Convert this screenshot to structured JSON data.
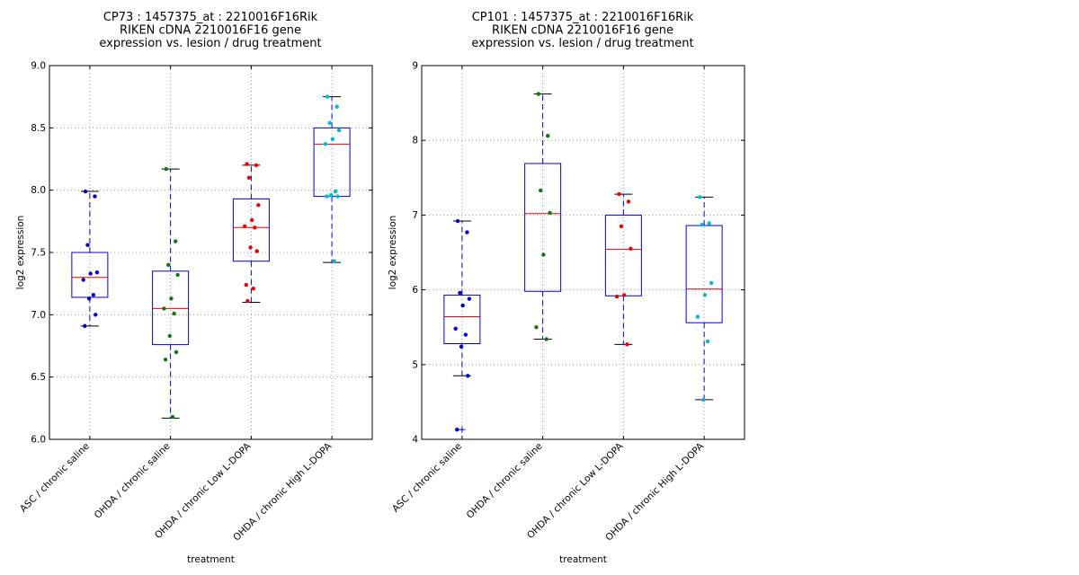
{
  "chart_data": [
    {
      "type": "box",
      "title_lines": [
        "CP73 : 1457375_at : 2210016F16Rik",
        "RIKEN cDNA 2210016F16 gene",
        "expression vs. lesion / drug treatment"
      ],
      "xlabel": "treatment",
      "ylabel": "log2 expression",
      "ylim": [
        6.0,
        9.0
      ],
      "yticks": [
        6.0,
        6.5,
        7.0,
        7.5,
        8.0,
        8.5,
        9.0
      ],
      "ytick_labels": [
        "6.0",
        "6.5",
        "7.0",
        "7.5",
        "8.0",
        "8.5",
        "9.0"
      ],
      "grid": true,
      "categories": [
        "ASC / chronic saline",
        "OHDA / chronic saline",
        "OHDA / chronic Low L-DOPA",
        "OHDA / chronic High L-DOPA"
      ],
      "boxes": [
        {
          "whislo": 6.91,
          "q1": 7.14,
          "med": 7.3,
          "q3": 7.5,
          "whishi": 7.99,
          "fliers": []
        },
        {
          "whislo": 6.17,
          "q1": 6.76,
          "med": 7.05,
          "q3": 7.35,
          "whishi": 8.17,
          "fliers": []
        },
        {
          "whislo": 7.1,
          "q1": 7.43,
          "med": 7.7,
          "q3": 7.93,
          "whishi": 8.2,
          "fliers": []
        },
        {
          "whislo": 7.42,
          "q1": 7.95,
          "med": 8.37,
          "q3": 8.5,
          "whishi": 8.75,
          "fliers": []
        }
      ],
      "points": [
        {
          "color": "#0000cc",
          "values": [
            7.99,
            7.95,
            7.56,
            7.34,
            7.33,
            7.28,
            7.16,
            7.13,
            7.0,
            6.91
          ]
        },
        {
          "color": "#117711",
          "values": [
            8.17,
            7.59,
            7.4,
            7.32,
            7.13,
            7.05,
            7.01,
            6.83,
            6.7,
            6.64,
            6.18
          ]
        },
        {
          "color": "#ee0000",
          "values": [
            8.21,
            8.2,
            8.1,
            7.88,
            7.76,
            7.71,
            7.7,
            7.54,
            7.51,
            7.24,
            7.21,
            7.11
          ]
        },
        {
          "color": "#00bbcc",
          "values": [
            8.75,
            8.67,
            8.54,
            8.48,
            8.41,
            8.37,
            7.99,
            7.96,
            7.95,
            7.95,
            7.43
          ]
        }
      ]
    },
    {
      "type": "box",
      "title_lines": [
        "CP101 : 1457375_at : 2210016F16Rik",
        "RIKEN cDNA 2210016F16 gene",
        "expression vs. lesion / drug treatment"
      ],
      "xlabel": "treatment",
      "ylabel": "log2 expression",
      "ylim": [
        4,
        9
      ],
      "yticks": [
        4,
        5,
        6,
        7,
        8,
        9
      ],
      "ytick_labels": [
        "4",
        "5",
        "6",
        "7",
        "8",
        "9"
      ],
      "grid": true,
      "categories": [
        "ASC / chronic saline",
        "OHDA / chronic saline",
        "OHDA / chronic Low L-DOPA",
        "OHDA / chronic High L-DOPA"
      ],
      "boxes": [
        {
          "whislo": 4.85,
          "q1": 5.28,
          "med": 5.64,
          "q3": 5.93,
          "whishi": 6.92,
          "fliers": [
            4.13
          ]
        },
        {
          "whislo": 5.34,
          "q1": 5.98,
          "med": 7.02,
          "q3": 7.69,
          "whishi": 8.62,
          "fliers": []
        },
        {
          "whislo": 5.27,
          "q1": 5.92,
          "med": 6.54,
          "q3": 7.0,
          "whishi": 7.28,
          "fliers": []
        },
        {
          "whislo": 4.53,
          "q1": 5.56,
          "med": 6.01,
          "q3": 6.86,
          "whishi": 7.24,
          "fliers": []
        }
      ],
      "points": [
        {
          "color": "#0000cc",
          "values": [
            6.92,
            6.77,
            5.96,
            5.88,
            5.79,
            5.48,
            5.4,
            5.24,
            4.85,
            4.13
          ]
        },
        {
          "color": "#117711",
          "values": [
            8.62,
            8.06,
            7.33,
            7.03,
            6.47,
            5.5,
            5.34
          ]
        },
        {
          "color": "#ee0000",
          "values": [
            7.28,
            7.18,
            6.85,
            6.55,
            5.93,
            5.91,
            5.27
          ]
        },
        {
          "color": "#00bbcc",
          "values": [
            7.24,
            6.89,
            6.87,
            6.09,
            5.93,
            5.64,
            5.31,
            4.53
          ]
        }
      ]
    }
  ]
}
